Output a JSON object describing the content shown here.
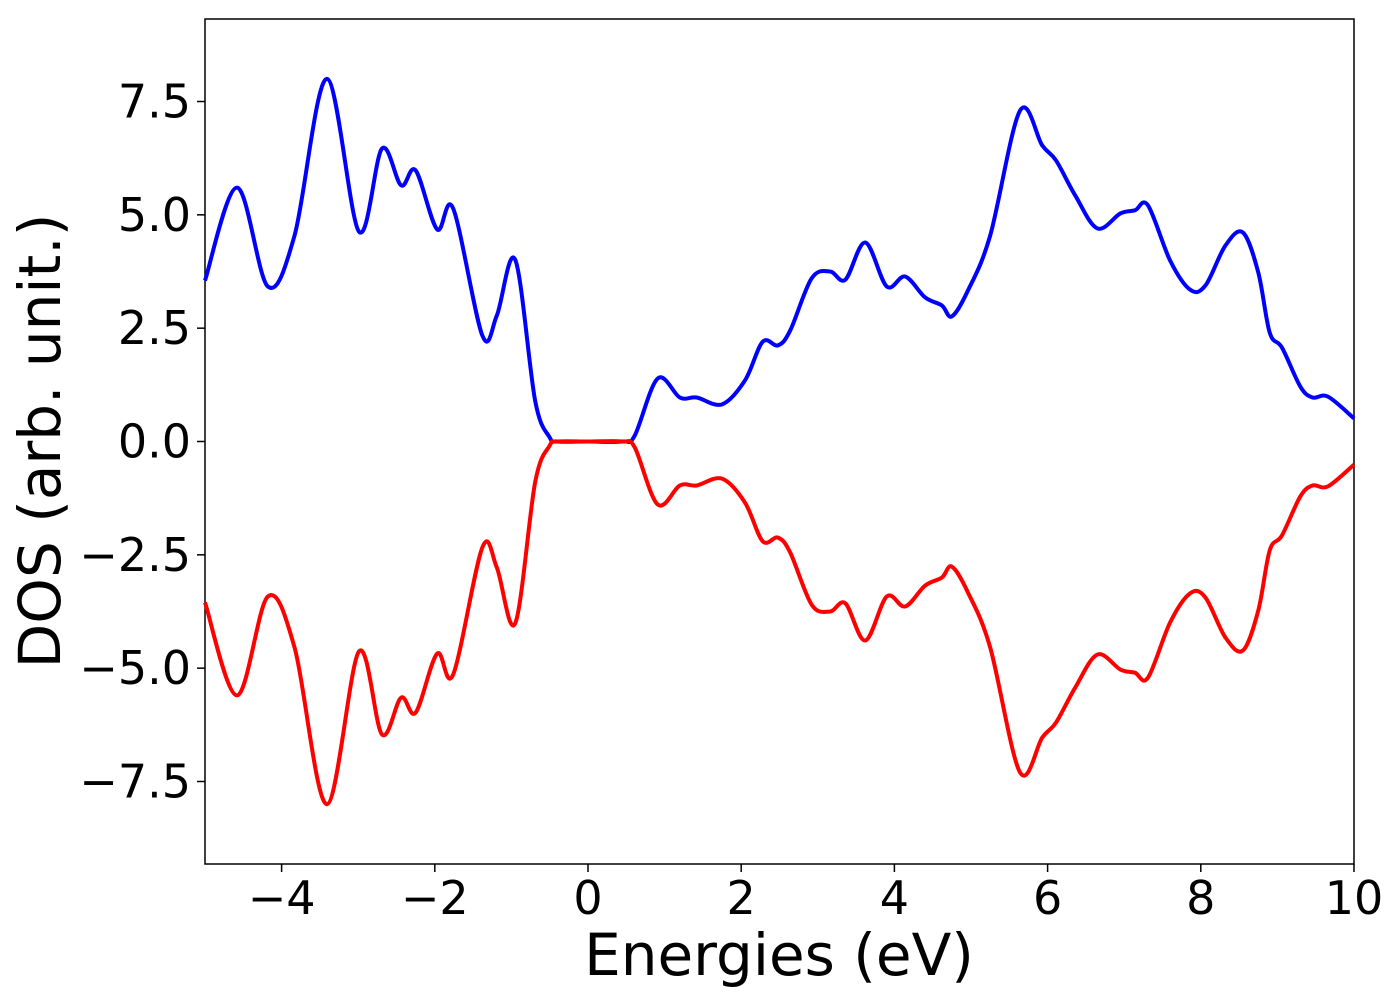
{
  "chart_data": {
    "type": "line",
    "x_label": "Energies (eV)",
    "y_label": "DOS (arb. unit.)",
    "x": [
      -5,
      -4.58,
      -4.18,
      -3.83,
      -3.41,
      -2.99,
      -2.69,
      -2.44,
      -2.25,
      -1.97,
      -1.76,
      -1.38,
      -1.19,
      -0.95,
      -0.69,
      -0.5,
      -0.4,
      0,
      0.45,
      0.61,
      0.91,
      1.2,
      1.42,
      1.75,
      2.05,
      2.28,
      2.48,
      2.64,
      2.92,
      3.16,
      3.36,
      3.62,
      3.9,
      4.14,
      4.4,
      4.62,
      4.75,
      4.96,
      5.25,
      5.64,
      5.93,
      6.11,
      6.36,
      6.65,
      6.95,
      7.14,
      7.31,
      7.6,
      7.86,
      8.06,
      8.32,
      8.55,
      8.75,
      8.9,
      9.06,
      9.3,
      9.46,
      9.66,
      10
    ],
    "series": [
      {
        "color": "#0000ff",
        "values": [
          3.55,
          5.6,
          3.42,
          4.55,
          8.0,
          4.63,
          6.46,
          5.65,
          5.98,
          4.68,
          5.14,
          2.34,
          2.78,
          4.01,
          0.9,
          0.09,
          0,
          0,
          0,
          0.13,
          1.39,
          0.97,
          0.97,
          0.82,
          1.35,
          2.2,
          2.12,
          2.45,
          3.6,
          3.75,
          3.57,
          4.39,
          3.42,
          3.64,
          3.18,
          3.0,
          2.76,
          3.33,
          4.54,
          7.3,
          6.53,
          6.2,
          5.43,
          4.7,
          5.03,
          5.1,
          5.21,
          3.99,
          3.35,
          3.44,
          4.32,
          4.61,
          3.73,
          2.4,
          2.07,
          1.21,
          0.97,
          0.99,
          0.51
        ]
      },
      {
        "color": "#ff0000",
        "values": [
          -3.55,
          -5.6,
          -3.42,
          -4.55,
          -8.0,
          -4.63,
          -6.46,
          -5.65,
          -5.98,
          -4.68,
          -5.14,
          -2.34,
          -2.78,
          -4.01,
          -0.9,
          -0.09,
          0,
          0,
          0,
          -0.13,
          -1.39,
          -0.97,
          -0.97,
          -0.82,
          -1.35,
          -2.2,
          -2.12,
          -2.45,
          -3.6,
          -3.75,
          -3.57,
          -4.39,
          -3.42,
          -3.64,
          -3.18,
          -3.0,
          -2.76,
          -3.33,
          -4.54,
          -7.3,
          -6.53,
          -6.2,
          -5.43,
          -4.7,
          -5.03,
          -5.1,
          -5.21,
          -3.99,
          -3.35,
          -3.44,
          -4.32,
          -4.61,
          -3.73,
          -2.4,
          -2.07,
          -1.21,
          -0.97,
          -0.99,
          -0.51
        ]
      }
    ],
    "xlim": [
      -5,
      10
    ],
    "ylim": [
      -9.32,
      9.32
    ],
    "xticks": [
      {
        "value": -4,
        "label": "−4"
      },
      {
        "value": -2,
        "label": "−2"
      },
      0,
      2,
      4,
      6,
      8,
      10
    ],
    "yticks": [
      {
        "value": -7.5,
        "label": "−7.5"
      },
      {
        "value": -5,
        "label": "−5.0"
      },
      {
        "value": -2.5,
        "label": "−2.5"
      },
      {
        "value": 0,
        "label": "0.0"
      },
      2.5,
      {
        "value": 5,
        "label": "5.0"
      },
      7.5
    ],
    "grid": false
  }
}
